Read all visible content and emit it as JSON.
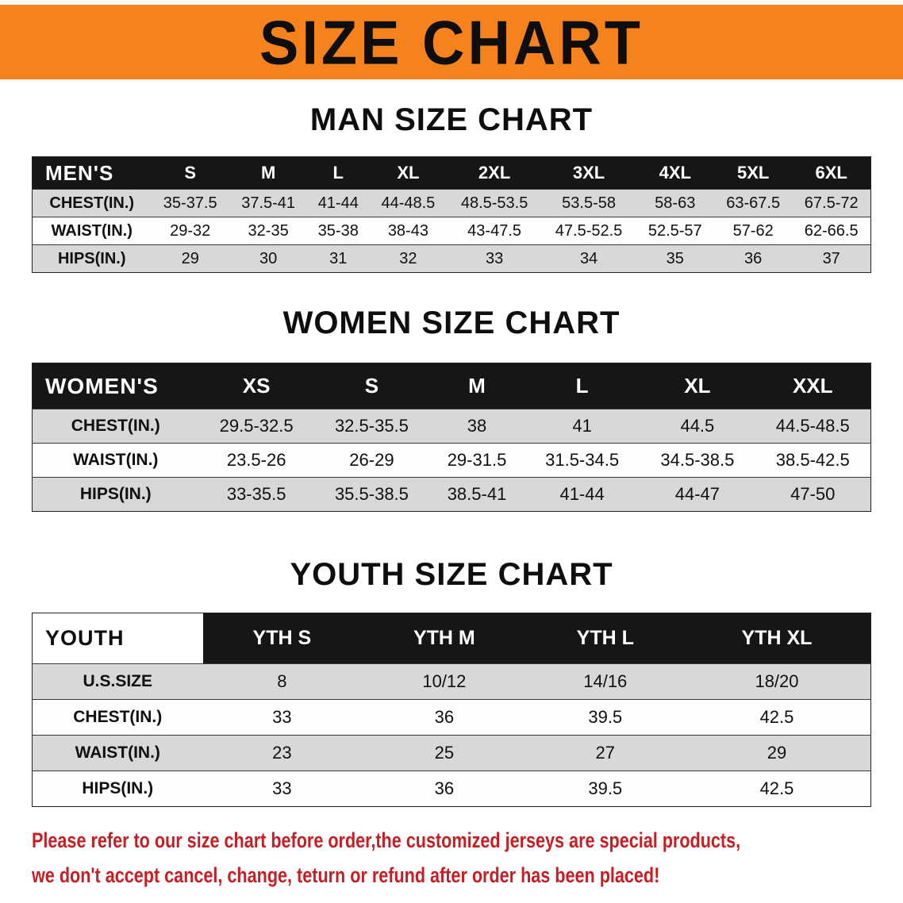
{
  "banner": {
    "title": "SIZE CHART"
  },
  "colors": {
    "banner_bg": "#f6821d",
    "header_bg": "#161616",
    "row_alt": "#d8d8d8",
    "row_base": "#fdfdfd",
    "note_red": "#c41f25"
  },
  "sections": [
    {
      "id": "men",
      "heading": "MAN SIZE CHART",
      "table": {
        "header": [
          "MEN'S",
          "S",
          "M",
          "L",
          "XL",
          "2XL",
          "3XL",
          "4XL",
          "5XL",
          "6XL"
        ],
        "rows": [
          [
            "CHEST(IN.)",
            "35-37.5",
            "37.5-41",
            "41-44",
            "44-48.5",
            "48.5-53.5",
            "53.5-58",
            "58-63",
            "63-67.5",
            "67.5-72"
          ],
          [
            "WAIST(IN.)",
            "29-32",
            "32-35",
            "35-38",
            "38-43",
            "43-47.5",
            "47.5-52.5",
            "52.5-57",
            "57-62",
            "62-66.5"
          ],
          [
            "HIPS(IN.)",
            "29",
            "30",
            "31",
            "32",
            "33",
            "34",
            "35",
            "36",
            "37"
          ]
        ]
      }
    },
    {
      "id": "women",
      "heading": "WOMEN SIZE CHART",
      "table": {
        "header": [
          "WOMEN'S",
          "XS",
          "S",
          "M",
          "L",
          "XL",
          "XXL"
        ],
        "rows": [
          [
            "CHEST(IN.)",
            "29.5-32.5",
            "32.5-35.5",
            "38",
            "41",
            "44.5",
            "44.5-48.5"
          ],
          [
            "WAIST(IN.)",
            "23.5-26",
            "26-29",
            "29-31.5",
            "31.5-34.5",
            "34.5-38.5",
            "38.5-42.5"
          ],
          [
            "HIPS(IN.)",
            "33-35.5",
            "35.5-38.5",
            "38.5-41",
            "41-44",
            "44-47",
            "47-50"
          ]
        ]
      }
    },
    {
      "id": "youth",
      "heading": "YOUTH SIZE CHART",
      "table": {
        "header": [
          "YOUTH",
          "YTH S",
          "YTH M",
          "YTH L",
          "YTH XL"
        ],
        "rows": [
          [
            "U.S.SIZE",
            "8",
            "10/12",
            "14/16",
            "18/20"
          ],
          [
            "CHEST(IN.)",
            "33",
            "36",
            "39.5",
            "42.5"
          ],
          [
            "WAIST(IN.)",
            "23",
            "25",
            "27",
            "29"
          ],
          [
            "HIPS(IN.)",
            "33",
            "36",
            "39.5",
            "42.5"
          ]
        ]
      }
    }
  ],
  "note": {
    "line1": "Please refer to our size chart before order,the customized jerseys are special products,",
    "line2": "we don't accept cancel, change, teturn or refund after order has been placed!"
  }
}
